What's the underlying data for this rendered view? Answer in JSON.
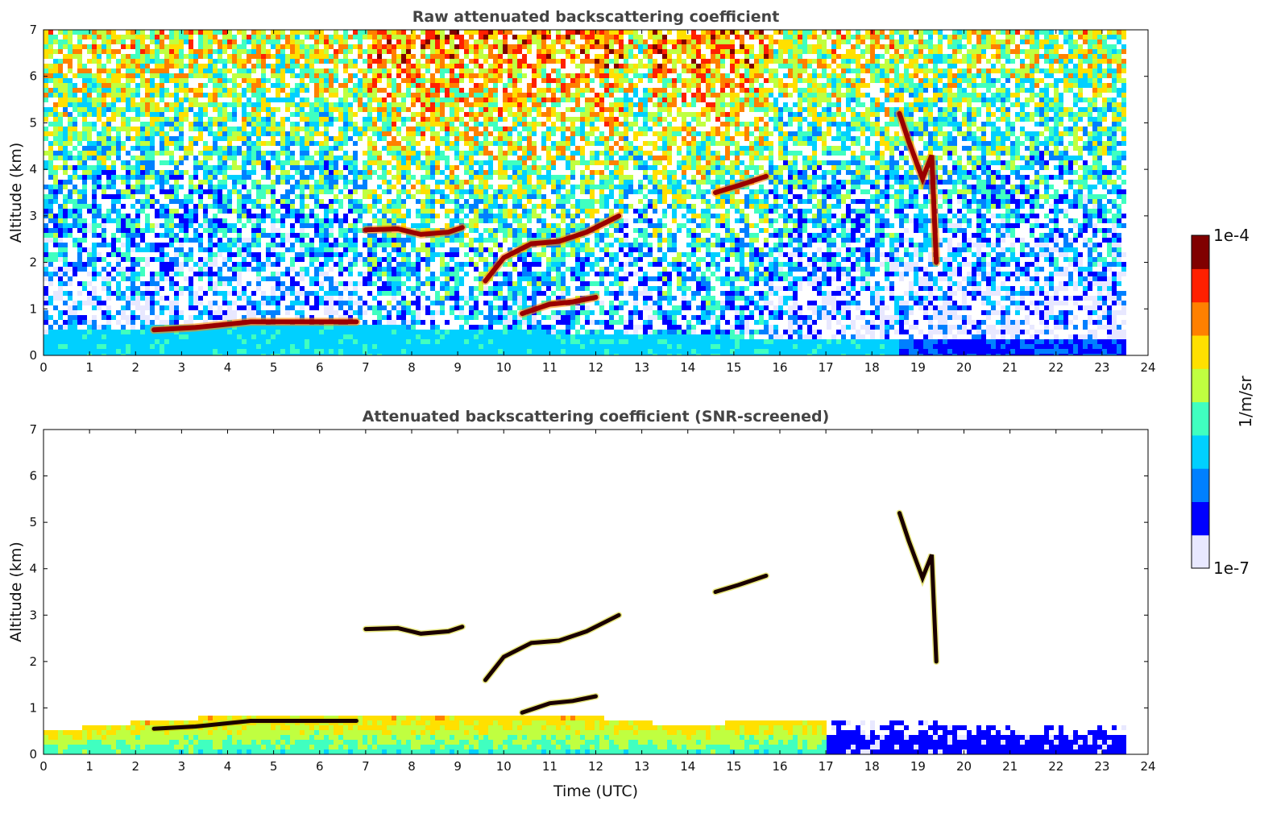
{
  "chart_data": [
    {
      "type": "heatmap",
      "title": "Raw attenuated backscattering coefficient",
      "xlabel": "",
      "ylabel": "Altitude (km)",
      "xlim": [
        0,
        24
      ],
      "ylim": [
        0,
        7
      ],
      "xticks": [
        "0",
        "1",
        "2",
        "3",
        "4",
        "5",
        "6",
        "7",
        "8",
        "9",
        "10",
        "11",
        "12",
        "13",
        "14",
        "15",
        "16",
        "17",
        "18",
        "19",
        "20",
        "21",
        "22",
        "23",
        "24"
      ],
      "yticks": [
        "0",
        "1",
        "2",
        "3",
        "4",
        "5",
        "6",
        "7"
      ],
      "data_end_time": 23.5,
      "boundary_layer_top_km": [
        [
          0,
          0.55
        ],
        [
          1,
          0.6
        ],
        [
          2,
          0.65
        ],
        [
          3,
          0.7
        ],
        [
          4,
          0.72
        ],
        [
          5,
          0.72
        ],
        [
          6,
          0.72
        ],
        [
          7,
          0.7
        ],
        [
          8,
          0.65
        ],
        [
          9,
          0.6
        ],
        [
          10,
          0.58
        ],
        [
          11,
          0.55
        ],
        [
          12,
          0.55
        ],
        [
          13,
          0.5
        ],
        [
          14,
          0.5
        ],
        [
          15,
          0.45
        ],
        [
          16,
          0.45
        ],
        [
          17,
          0.4
        ],
        [
          18,
          0.4
        ],
        [
          19,
          0.35
        ],
        [
          20,
          0.35
        ],
        [
          21,
          0.35
        ],
        [
          22,
          0.35
        ],
        [
          23,
          0.35
        ],
        [
          23.5,
          0.35
        ]
      ],
      "cloud_features": [
        {
          "name": "low cloud layer",
          "points": [
            [
              2.4,
              0.55
            ],
            [
              3.3,
              0.6
            ],
            [
              4.5,
              0.72
            ],
            [
              5.4,
              0.72
            ],
            [
              6.3,
              0.72
            ],
            [
              6.8,
              0.72
            ]
          ]
        },
        {
          "name": "mid cloud layer 7-9h",
          "points": [
            [
              7,
              2.7
            ],
            [
              7.7,
              2.72
            ],
            [
              8.2,
              2.6
            ],
            [
              8.8,
              2.65
            ],
            [
              9.1,
              2.75
            ]
          ]
        },
        {
          "name": "rising cloud layer 9.6-12.5h",
          "points": [
            [
              9.6,
              1.6
            ],
            [
              10,
              2.1
            ],
            [
              10.6,
              2.4
            ],
            [
              11.2,
              2.45
            ],
            [
              11.8,
              2.65
            ],
            [
              12.5,
              3.0
            ]
          ]
        },
        {
          "name": "low rising cloud 10.4-12h",
          "points": [
            [
              10.4,
              0.9
            ],
            [
              11,
              1.1
            ],
            [
              11.5,
              1.15
            ],
            [
              12,
              1.25
            ]
          ]
        },
        {
          "name": "cloud 14.6-15.7h",
          "points": [
            [
              14.6,
              3.5
            ],
            [
              15.1,
              3.65
            ],
            [
              15.7,
              3.85
            ]
          ]
        },
        {
          "name": "virga 18.6-19.4h",
          "points": [
            [
              18.6,
              5.2
            ],
            [
              18.8,
              4.6
            ],
            [
              19.1,
              3.8
            ],
            [
              19.3,
              4.3
            ],
            [
              19.4,
              2.0
            ]
          ]
        }
      ]
    },
    {
      "type": "heatmap",
      "title": "Attenuated backscattering coefficient (SNR-screened)",
      "xlabel": "Time (UTC)",
      "ylabel": "Altitude (km)",
      "xlim": [
        0,
        24
      ],
      "ylim": [
        0,
        7
      ],
      "xticks": [
        "0",
        "1",
        "2",
        "3",
        "4",
        "5",
        "6",
        "7",
        "8",
        "9",
        "10",
        "11",
        "12",
        "13",
        "14",
        "15",
        "16",
        "17",
        "18",
        "19",
        "20",
        "21",
        "22",
        "23",
        "24"
      ],
      "yticks": [
        "0",
        "1",
        "2",
        "3",
        "4",
        "5",
        "6",
        "7"
      ],
      "data_end_time": 23.5,
      "screened_layer_top_km": [
        [
          0,
          0.55
        ],
        [
          1,
          0.65
        ],
        [
          2,
          0.75
        ],
        [
          3,
          0.8
        ],
        [
          4,
          0.9
        ],
        [
          5,
          0.9
        ],
        [
          6,
          0.9
        ],
        [
          7,
          0.85
        ],
        [
          8,
          0.9
        ],
        [
          9,
          0.85
        ],
        [
          10,
          0.85
        ],
        [
          11,
          0.85
        ],
        [
          12,
          0.85
        ],
        [
          13,
          0.75
        ],
        [
          14,
          0.65
        ],
        [
          15,
          0.75
        ],
        [
          16,
          0.8
        ],
        [
          17,
          0.8
        ],
        [
          18,
          0.8
        ],
        [
          19,
          0.75
        ],
        [
          20,
          0.7
        ],
        [
          21,
          0.7
        ],
        [
          22,
          0.7
        ],
        [
          23,
          0.7
        ],
        [
          23.5,
          0.7
        ]
      ]
    }
  ],
  "colorbar": {
    "label": "1/m/sr",
    "max_label": "1e-4",
    "min_label": "1e-7",
    "colors": [
      "#e8e8ff",
      "#0000ff",
      "#0080ff",
      "#00d0ff",
      "#40ffc0",
      "#c0ff40",
      "#ffe000",
      "#ff8000",
      "#ff2000",
      "#800000"
    ]
  }
}
